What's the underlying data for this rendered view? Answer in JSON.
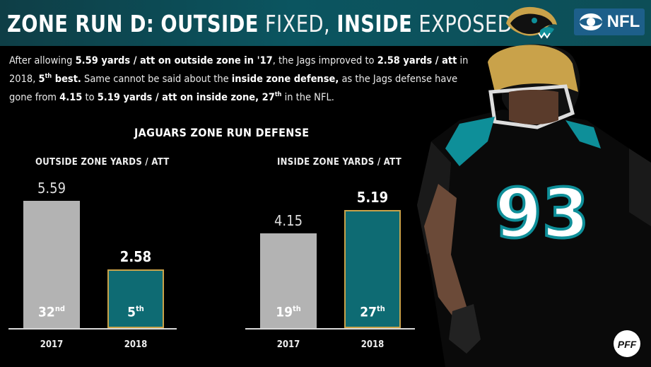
{
  "header": {
    "title_part1": "ZONE RUN D:",
    "title_part2": "OUTSIDE",
    "title_part3": "FIXED,",
    "title_part4": "INSIDE",
    "title_part5": "EXPOSED",
    "nfl_label": "NFL",
    "jag_logo_icon": "jaguar-head-logo",
    "network_icon": "cbs-eye-logo",
    "pff_label": "PFF"
  },
  "intro": {
    "t1": "After allowing ",
    "b1": "5.59 yards / att on outside zone in '17",
    "t2": ", the Jags improved to ",
    "b2": "2.58 yards / att",
    "t3": " in 2018, ",
    "b3": "5",
    "s3": "th",
    "b3b": " best.",
    "t4": " Same cannot be said about the ",
    "b4": "inside zone defense,",
    "t5": " as the Jags defense have gone from ",
    "b5": "4.15",
    "t6": " to ",
    "b6": "5.19 yards / att on inside zone, 27",
    "s6": "th",
    "t7": " in the NFL."
  },
  "colors": {
    "gray_bar": "#b3b3b3",
    "teal_bar": "#0e6b73",
    "gold_border": "#c9a24a",
    "header_bg": "#0b5560"
  },
  "chart_data": [
    {
      "type": "bar",
      "title": "JAGUARS ZONE RUN DEFENSE",
      "subtitle": "OUTSIDE ZONE YARDS / ATT",
      "categories": [
        "2017",
        "2018"
      ],
      "values": [
        5.59,
        2.58
      ],
      "value_labels": [
        "5.59",
        "2.58"
      ],
      "ranks": [
        {
          "num": "32",
          "suf": "nd"
        },
        {
          "num": "5",
          "suf": "th"
        }
      ],
      "colors": [
        "#b3b3b3",
        "#0e6b73"
      ],
      "ylim": [
        0,
        6
      ]
    },
    {
      "type": "bar",
      "subtitle": "INSIDE ZONE YARDS / ATT",
      "categories": [
        "2017",
        "2018"
      ],
      "values": [
        4.15,
        5.19
      ],
      "value_labels": [
        "4.15",
        "5.19"
      ],
      "ranks": [
        {
          "num": "19",
          "suf": "th"
        },
        {
          "num": "27",
          "suf": "th"
        }
      ],
      "colors": [
        "#b3b3b3",
        "#0e6b73"
      ],
      "ylim": [
        0,
        6
      ]
    }
  ]
}
